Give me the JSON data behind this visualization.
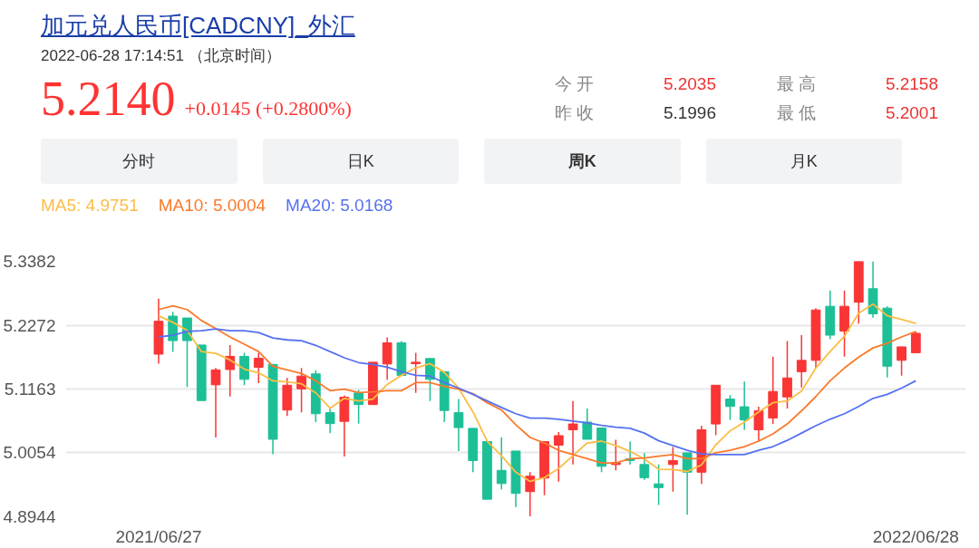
{
  "chart_data": {
    "type": "candlestick",
    "title": "加元兑人民币[CADCNY]_外汇",
    "annotations": [
      "2022-06-28 17:14:51 （北京时间）",
      "5.2140",
      "+0.0145 (+0.2800%)",
      "今 开",
      "5.2035",
      "昨 收",
      "5.1996",
      "最 高",
      "5.2158",
      "最 低",
      "5.2001",
      "分时",
      "日K",
      "周K",
      "月K"
    ],
    "categories": [
      "2021/06/27",
      null,
      null,
      null,
      null,
      null,
      null,
      null,
      null,
      null,
      null,
      null,
      null,
      null,
      null,
      null,
      null,
      null,
      null,
      null,
      null,
      null,
      null,
      null,
      null,
      null,
      null,
      null,
      null,
      null,
      null,
      null,
      null,
      null,
      null,
      null,
      null,
      null,
      null,
      null,
      null,
      null,
      null,
      null,
      null,
      null,
      null,
      null,
      null,
      null,
      null,
      null,
      null,
      "2022/06/28"
    ],
    "ohlc": [
      [
        5.1769,
        5.2734,
        5.1604,
        5.2341
      ],
      [
        5.2429,
        5.2506,
        5.1807,
        5.2004
      ],
      [
        5.2398,
        5.2398,
        5.1198,
        5.2004
      ],
      [
        5.1928,
        5.1928,
        5.0963,
        5.0963
      ],
      [
        5.1236,
        5.1528,
        5.0321,
        5.1496
      ],
      [
        5.1502,
        5.1928,
        5.1032,
        5.1731
      ],
      [
        5.1731,
        5.1794,
        5.1229,
        5.1331
      ],
      [
        5.154,
        5.1794,
        5.1267,
        5.1699
      ],
      [
        5.1591,
        5.1591,
        5.0029,
        5.029
      ],
      [
        5.0798,
        5.1356,
        5.0696,
        5.1229
      ],
      [
        5.1166,
        5.1528,
        5.0759,
        5.1388
      ],
      [
        5.1426,
        5.149,
        5.0588,
        5.0734
      ],
      [
        5.0753,
        5.0842,
        5.0397,
        5.0563
      ],
      [
        5.0601,
        5.1052,
        4.9991,
        5.102
      ],
      [
        5.1096,
        5.1147,
        5.0563,
        5.0893
      ],
      [
        5.0893,
        5.1629,
        5.0893,
        5.1629
      ],
      [
        5.1598,
        5.2061,
        5.1325,
        5.1966
      ],
      [
        5.1966,
        5.1998,
        5.1401,
        5.1401
      ],
      [
        5.1604,
        5.1794,
        5.1096,
        5.1629
      ],
      [
        5.1693,
        5.1693,
        5.0956,
        5.1331
      ],
      [
        5.1464,
        5.1464,
        5.0588,
        5.0791
      ],
      [
        5.0753,
        5.0988,
        5.0086,
        5.0493
      ],
      [
        5.048,
        5.048,
        4.9718,
        4.9921
      ],
      [
        5.0251,
        5.0251,
        4.9248,
        4.9248
      ],
      [
        4.975,
        5.0321,
        4.942,
        4.9521
      ],
      [
        5.0086,
        5.0086,
        4.9115,
        4.935
      ],
      [
        4.9381,
        4.9718,
        4.895,
        4.9648
      ],
      [
        4.9616,
        5.0251,
        4.9318,
        5.0251
      ],
      [
        5.0188,
        5.0417,
        4.9553,
        5.0353
      ],
      [
        5.0455,
        5.0956,
        4.9851,
        5.0556
      ],
      [
        5.0588,
        5.0823,
        5.029,
        5.029
      ],
      [
        5.0486,
        5.0486,
        4.9718,
        4.982
      ],
      [
        4.9851,
        5.0283,
        4.975,
        4.9883
      ],
      [
        4.9953,
        5.0251,
        4.9851,
        4.9921
      ],
      [
        4.9851,
        5.0048,
        4.9585,
        4.9623
      ],
      [
        4.9515,
        4.9851,
        4.9147,
        4.9451
      ],
      [
        4.9851,
        5.0156,
        4.9381,
        4.9921
      ],
      [
        5.0055,
        5.0055,
        4.8981,
        4.9718
      ],
      [
        4.9718,
        5.0524,
        4.9515,
        5.0455
      ],
      [
        5.0556,
        5.1229,
        5.0359,
        5.1229
      ],
      [
        5.0988,
        5.1058,
        5.0626,
        5.0861
      ],
      [
        5.0855,
        5.1293,
        5.0455,
        5.0626
      ],
      [
        5.0455,
        5.0855,
        5.0251,
        5.0785
      ],
      [
        5.0658,
        5.1725,
        5.0556,
        5.1121
      ],
      [
        5.1026,
        5.1998,
        5.0823,
        5.1356
      ],
      [
        5.1464,
        5.2099,
        5.1191,
        5.1661
      ],
      [
        5.1661,
        5.2569,
        5.1528,
        5.2537
      ],
      [
        5.2601,
        5.2874,
        5.2029,
        5.2099
      ],
      [
        5.2169,
        5.2874,
        5.1725,
        5.2601
      ],
      [
        5.2671,
        5.3382,
        5.2302,
        5.3382
      ],
      [
        5.2906,
        5.3382,
        5.2404,
        5.2468
      ],
      [
        5.2569,
        5.2601,
        5.1363,
        5.156
      ],
      [
        5.1661,
        5.1896,
        5.1394,
        5.1896
      ],
      [
        5.1794,
        5.2163,
        5.1794,
        5.2131
      ]
    ],
    "colors": [
      "#f93535",
      "#1dbf97",
      "#1dbf97",
      "#1dbf97",
      "#f93535",
      "#f93535",
      "#1dbf97",
      "#f93535",
      "#1dbf97",
      "#f93535",
      "#f93535",
      "#1dbf97",
      "#1dbf97",
      "#f93535",
      "#1dbf97",
      "#f93535",
      "#f93535",
      "#1dbf97",
      "#f93535",
      "#1dbf97",
      "#1dbf97",
      "#1dbf97",
      "#1dbf97",
      "#1dbf97",
      "#1dbf97",
      "#1dbf97",
      "#f93535",
      "#f93535",
      "#f93535",
      "#f93535",
      "#1dbf97",
      "#1dbf97",
      "#f93535",
      "#1dbf97",
      "#1dbf97",
      "#1dbf97",
      "#f93535",
      "#1dbf97",
      "#f93535",
      "#f93535",
      "#1dbf97",
      "#1dbf97",
      "#f93535",
      "#f93535",
      "#f93535",
      "#f93535",
      "#f93535",
      "#1dbf97",
      "#f93535",
      "#f93535",
      "#1dbf97",
      "#1dbf97",
      "#f93535",
      "#f93535"
    ],
    "series": [
      {
        "name": "MA5: 4.9751",
        "type": "line",
        "color": "#fbbd45",
        "values": [
          5.2436,
          5.2322,
          5.2182,
          5.1814,
          5.1782,
          5.1668,
          5.1509,
          5.1445,
          5.1306,
          5.1287,
          5.1255,
          5.1096,
          5.0829,
          5.1001,
          5.0956,
          5.0988,
          5.1242,
          5.1401,
          5.1528,
          5.1604,
          5.1452,
          5.1179,
          5.0766,
          5.0258,
          5.0004,
          4.9718,
          4.9559,
          4.9623,
          4.9782,
          5.0004,
          5.0226,
          5.0258,
          5.0182,
          5.008,
          4.9947,
          4.9769,
          4.9763,
          4.9731,
          4.9845,
          5.0194,
          5.0436,
          5.0588,
          5.0766,
          5.0925,
          5.0956,
          5.1128,
          5.1528,
          5.1814,
          5.208,
          5.248,
          5.2639,
          5.2436,
          5.2373,
          5.2303
        ]
      },
      {
        "name": "MA10: 5.0004",
        "type": "line",
        "color": "#f97a2c",
        "values": [
          5.2544,
          5.2607,
          5.2544,
          5.2353,
          5.2214,
          5.2068,
          5.1941,
          5.1814,
          5.156,
          5.1496,
          5.1433,
          5.1306,
          5.1134,
          5.116,
          5.1103,
          5.1115,
          5.1134,
          5.1134,
          5.1274,
          5.1274,
          5.121,
          5.116,
          5.1083,
          5.0925,
          5.0798,
          5.0544,
          5.0321,
          5.0226,
          5.0099,
          5.0023,
          4.9953,
          4.9877,
          4.9877,
          4.9953,
          4.9966,
          4.9998,
          5.0023,
          4.9953,
          4.9953,
          5.0055,
          5.0099,
          5.0163,
          5.0258,
          5.0385,
          5.0556,
          5.0785,
          5.1033,
          5.1306,
          5.1528,
          5.1718,
          5.1877,
          5.196,
          5.2068,
          5.2163
        ]
      },
      {
        "name": "MA20: 5.0168",
        "type": "line",
        "color": "#5571f0",
        "values": [
          5.2068,
          5.2099,
          5.2163,
          5.2176,
          5.2207,
          5.2176,
          5.2176,
          5.2144,
          5.2049,
          5.2017,
          5.2004,
          5.1922,
          5.1814,
          5.1706,
          5.1623,
          5.1591,
          5.1541,
          5.1464,
          5.1401,
          5.1388,
          5.1274,
          5.1179,
          5.1071,
          5.0956,
          5.0842,
          5.0734,
          5.0658,
          5.0658,
          5.0639,
          5.0607,
          5.0575,
          5.0531,
          5.0499,
          5.048,
          5.0398,
          5.0264,
          5.0182,
          5.0099,
          5.0036,
          5.0023,
          5.0023,
          5.0023,
          5.0099,
          5.0163,
          5.0271,
          5.0398,
          5.0525,
          5.0639,
          5.0734,
          5.0861,
          5.1001,
          5.1071,
          5.1179,
          5.1306
        ]
      }
    ],
    "ylim": [
      4.8944,
      5.3382
    ],
    "yticks": [
      4.8944,
      5.0054,
      5.1163,
      5.2272,
      5.3382
    ],
    "grid": "y",
    "legend": "top left"
  }
}
